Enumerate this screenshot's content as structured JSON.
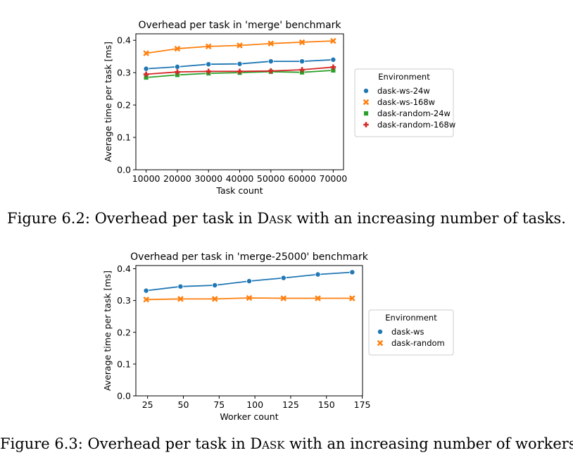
{
  "figures": [
    {
      "caption_prefix": "Figure 6.2: Overhead per task in ",
      "caption_name": "Dask",
      "caption_suffix": " with an increasing number of tasks."
    },
    {
      "caption_prefix": "Figure 6.3: Overhead per task in ",
      "caption_name": "Dask",
      "caption_suffix": " with an increasing number of workers."
    }
  ],
  "chart_data": [
    {
      "type": "line",
      "title": "Overhead per task in 'merge' benchmark",
      "xlabel": "Task count",
      "ylabel": "Average time per task [ms]",
      "x": [
        10000,
        20000,
        30000,
        40000,
        50000,
        60000,
        70000
      ],
      "xticks": [
        "10000",
        "20000",
        "30000",
        "40000",
        "50000",
        "60000",
        "70000"
      ],
      "yticks": [
        "0.0",
        "0.1",
        "0.2",
        "0.3",
        "0.4"
      ],
      "xlim": [
        6700,
        73300
      ],
      "ylim": [
        0,
        0.42
      ],
      "legend_title": "Environment",
      "legend_position": "right-outside",
      "series": [
        {
          "name": "dask-ws-24w",
          "color": "#1f77b4",
          "marker": "circle",
          "values": [
            0.312,
            0.318,
            0.326,
            0.327,
            0.335,
            0.335,
            0.34
          ]
        },
        {
          "name": "dask-ws-168w",
          "color": "#ff7f0e",
          "marker": "x",
          "values": [
            0.36,
            0.374,
            0.381,
            0.384,
            0.39,
            0.394,
            0.398
          ]
        },
        {
          "name": "dask-random-24w",
          "color": "#2ca02c",
          "marker": "square",
          "values": [
            0.285,
            0.293,
            0.298,
            0.3,
            0.303,
            0.301,
            0.307
          ]
        },
        {
          "name": "dask-random-168w",
          "color": "#d62728",
          "marker": "plus",
          "values": [
            0.295,
            0.302,
            0.304,
            0.304,
            0.305,
            0.309,
            0.317
          ]
        }
      ]
    },
    {
      "type": "line",
      "title": "Overhead per task in 'merge-25000' benchmark",
      "xlabel": "Worker count",
      "ylabel": "Average time per task [ms]",
      "x": [
        24,
        48,
        72,
        96,
        120,
        144,
        168
      ],
      "xticks": [
        "25",
        "50",
        "75",
        "100",
        "125",
        "150",
        "175"
      ],
      "xtick_values": [
        25,
        50,
        75,
        100,
        125,
        150,
        175
      ],
      "yticks": [
        "0.0",
        "0.1",
        "0.2",
        "0.3",
        "0.4"
      ],
      "xlim": [
        16.8,
        175.2
      ],
      "ylim": [
        0,
        0.41
      ],
      "legend_title": "Environment",
      "legend_position": "right-outside",
      "series": [
        {
          "name": "dask-ws",
          "color": "#1f77b4",
          "marker": "circle",
          "values": [
            0.331,
            0.344,
            0.348,
            0.361,
            0.371,
            0.382,
            0.389
          ]
        },
        {
          "name": "dask-random",
          "color": "#ff7f0e",
          "marker": "x",
          "values": [
            0.303,
            0.305,
            0.305,
            0.308,
            0.307,
            0.307,
            0.307
          ]
        }
      ]
    }
  ]
}
